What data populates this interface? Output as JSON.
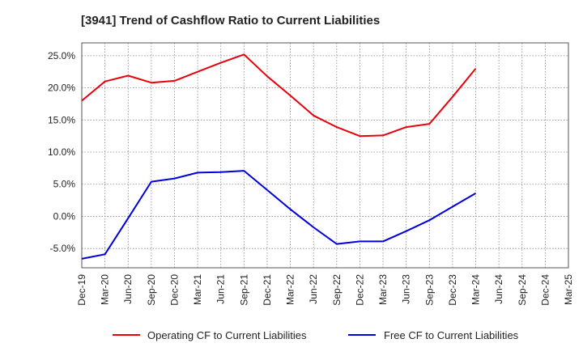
{
  "chart_data": {
    "type": "line",
    "title": "[3941]  Trend of Cashflow Ratio to Current Liabilities",
    "xlabel": "",
    "ylabel": "",
    "x": [
      "Dec-19",
      "Mar-20",
      "Jun-20",
      "Sep-20",
      "Dec-20",
      "Mar-21",
      "Jun-21",
      "Sep-21",
      "Dec-21",
      "Mar-22",
      "Jun-22",
      "Sep-22",
      "Dec-22",
      "Mar-23",
      "Jun-23",
      "Sep-23",
      "Dec-23",
      "Mar-24",
      "Jun-24",
      "Sep-24",
      "Dec-24",
      "Mar-25"
    ],
    "ylim": [
      -8,
      27
    ],
    "yticks": [
      -5,
      0,
      5,
      10,
      15,
      20,
      25
    ],
    "ytick_labels": [
      "-5.0%",
      "0.0%",
      "5.0%",
      "10.0%",
      "15.0%",
      "20.0%",
      "25.0%"
    ],
    "grid": true,
    "legend_position": "bottom",
    "series": [
      {
        "name": "Operating CF to Current Liabilities",
        "color": "#e8000b",
        "values": [
          18.0,
          21.0,
          21.9,
          20.8,
          21.1,
          22.5,
          23.9,
          25.2,
          21.8,
          18.8,
          15.7,
          13.9,
          12.5,
          12.6,
          13.9,
          14.4,
          18.6,
          23.0,
          null,
          null,
          null,
          null
        ]
      },
      {
        "name": "Free CF to Current Liabilities",
        "color": "#0000dd",
        "values": [
          -6.6,
          -5.9,
          -0.3,
          5.4,
          5.9,
          6.8,
          6.9,
          7.1,
          4.1,
          1.1,
          -1.7,
          -4.3,
          -3.9,
          -3.9,
          -2.3,
          -0.6,
          1.5,
          3.6,
          null,
          null,
          null,
          null
        ]
      }
    ]
  }
}
